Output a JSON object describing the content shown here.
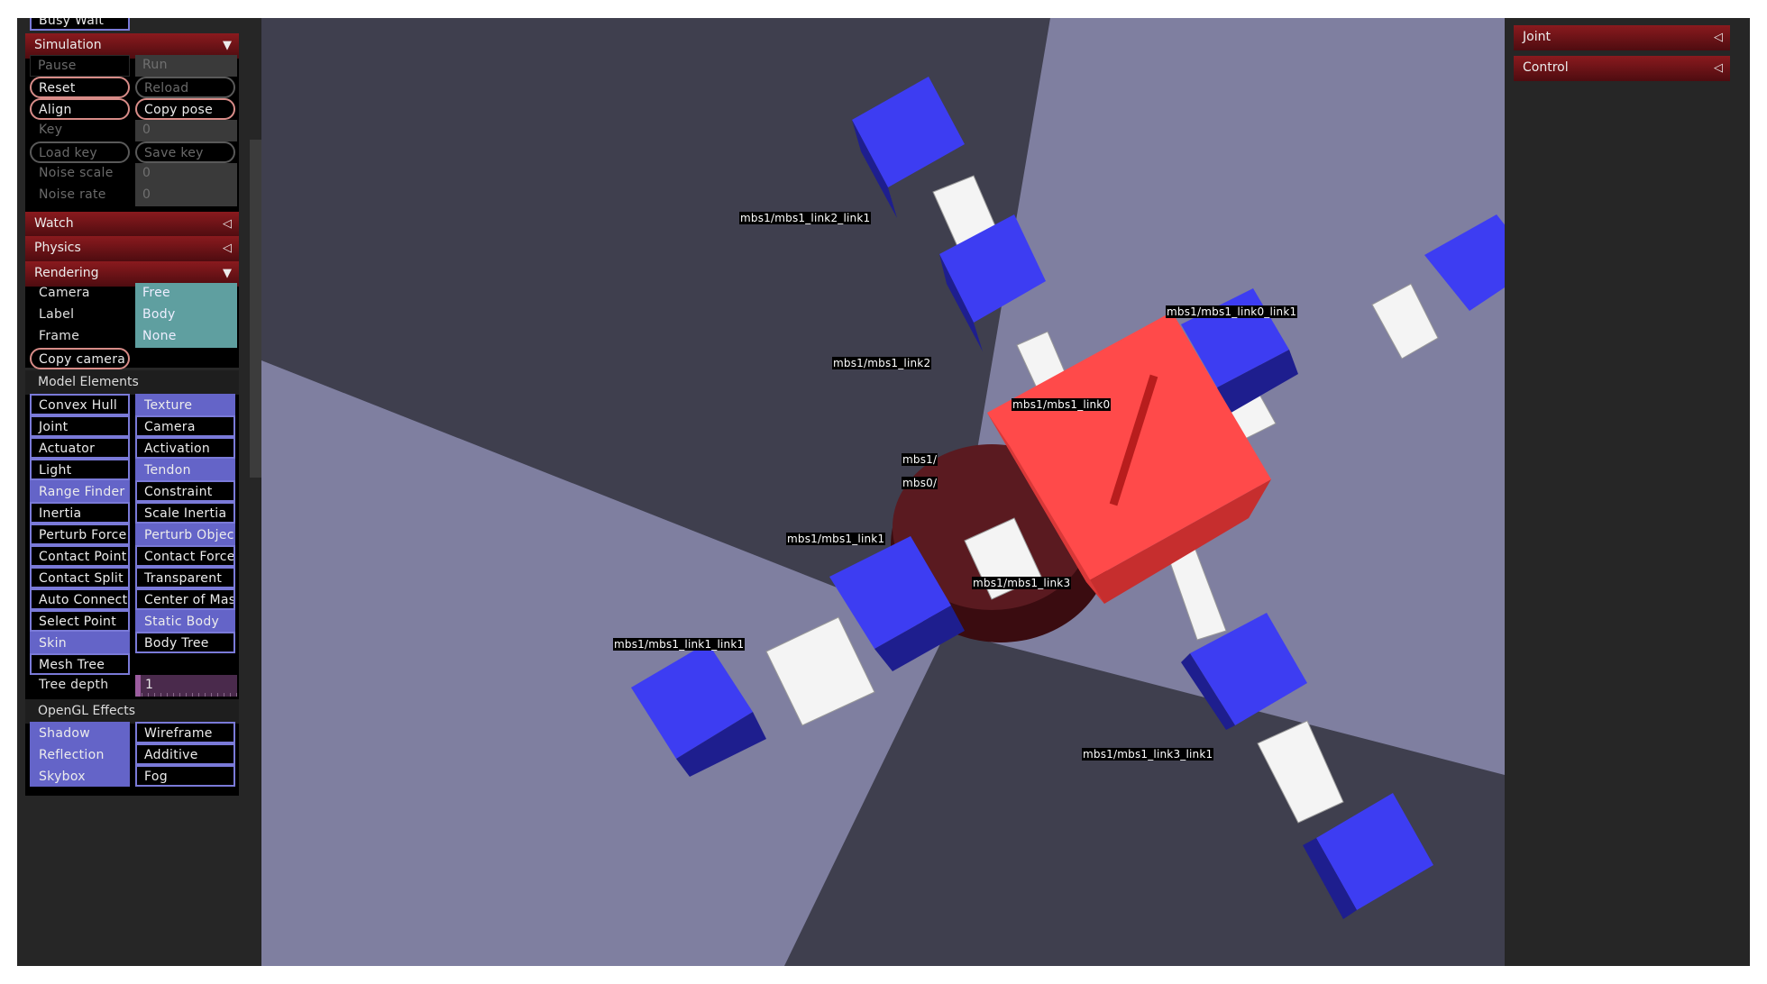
{
  "left_panel": {
    "top_partial_label": "Busy Wait",
    "simulation": {
      "title": "Simulation",
      "pause": "Pause",
      "run": "Run",
      "reset": "Reset",
      "reload": "Reload",
      "align": "Align",
      "copy_pose": "Copy pose",
      "key_label": "Key",
      "key_value": "0",
      "load_key": "Load key",
      "save_key": "Save key",
      "noise_scale_label": "Noise scale",
      "noise_scale_value": "0",
      "noise_rate_label": "Noise rate",
      "noise_rate_value": "0"
    },
    "watch": {
      "title": "Watch"
    },
    "physics": {
      "title": "Physics"
    },
    "rendering": {
      "title": "Rendering",
      "camera_label": "Camera",
      "camera_value": "Free",
      "label_label": "Label",
      "label_value": "Body",
      "frame_label": "Frame",
      "frame_value": "None",
      "copy_camera": "Copy camera",
      "model_elements_title": "Model Elements",
      "toggles": [
        {
          "label": "Convex Hull",
          "on": false
        },
        {
          "label": "Texture",
          "on": true
        },
        {
          "label": "Joint",
          "on": false
        },
        {
          "label": "Camera",
          "on": false
        },
        {
          "label": "Actuator",
          "on": false
        },
        {
          "label": "Activation",
          "on": false
        },
        {
          "label": "Light",
          "on": false
        },
        {
          "label": "Tendon",
          "on": true
        },
        {
          "label": "Range Finder",
          "on": true
        },
        {
          "label": "Constraint",
          "on": false
        },
        {
          "label": "Inertia",
          "on": false
        },
        {
          "label": "Scale Inertia",
          "on": false
        },
        {
          "label": "Perturb Force",
          "on": false
        },
        {
          "label": "Perturb Objec",
          "on": true
        },
        {
          "label": "Contact Point",
          "on": false
        },
        {
          "label": "Contact Force",
          "on": false
        },
        {
          "label": "Contact Split",
          "on": false
        },
        {
          "label": "Transparent",
          "on": false
        },
        {
          "label": "Auto Connect",
          "on": false
        },
        {
          "label": "Center of Mas",
          "on": false
        },
        {
          "label": "Select Point",
          "on": false
        },
        {
          "label": "Static Body",
          "on": true
        },
        {
          "label": "Skin",
          "on": true
        },
        {
          "label": "Body Tree",
          "on": false
        },
        {
          "label": "Mesh Tree",
          "on": false
        }
      ],
      "tree_depth_label": "Tree depth",
      "tree_depth_value": "1",
      "opengl_title": "OpenGL Effects",
      "gl_toggles": [
        {
          "label": "Shadow",
          "on": true
        },
        {
          "label": "Wireframe",
          "on": false
        },
        {
          "label": "Reflection",
          "on": true
        },
        {
          "label": "Additive",
          "on": false
        },
        {
          "label": "Skybox",
          "on": true
        },
        {
          "label": "Fog",
          "on": false
        }
      ]
    }
  },
  "right_panel": {
    "joint": {
      "title": "Joint"
    },
    "control": {
      "title": "Control"
    }
  },
  "viewport": {
    "labels": {
      "link2_link1": "mbs1/mbs1_link2_link1",
      "link0_link1": "mbs1/mbs1_link0_link1",
      "link2": "mbs1/mbs1_link2",
      "link0": "mbs1/mbs1_link0",
      "center1": "mbs1/",
      "center2": "mbs0/",
      "link1": "mbs1/mbs1_link1",
      "link3": "mbs1/mbs1_link3",
      "link1_link1": "mbs1/mbs1_link1_link1",
      "link3_link1": "mbs1/mbs1_link3_link1"
    },
    "colors": {
      "body": "#ff4a4a",
      "link": "#3f3ff5",
      "rod": "#f5f5f5",
      "floor_light": "#7f7fa0",
      "floor_dark": "#3f3f4e"
    }
  }
}
